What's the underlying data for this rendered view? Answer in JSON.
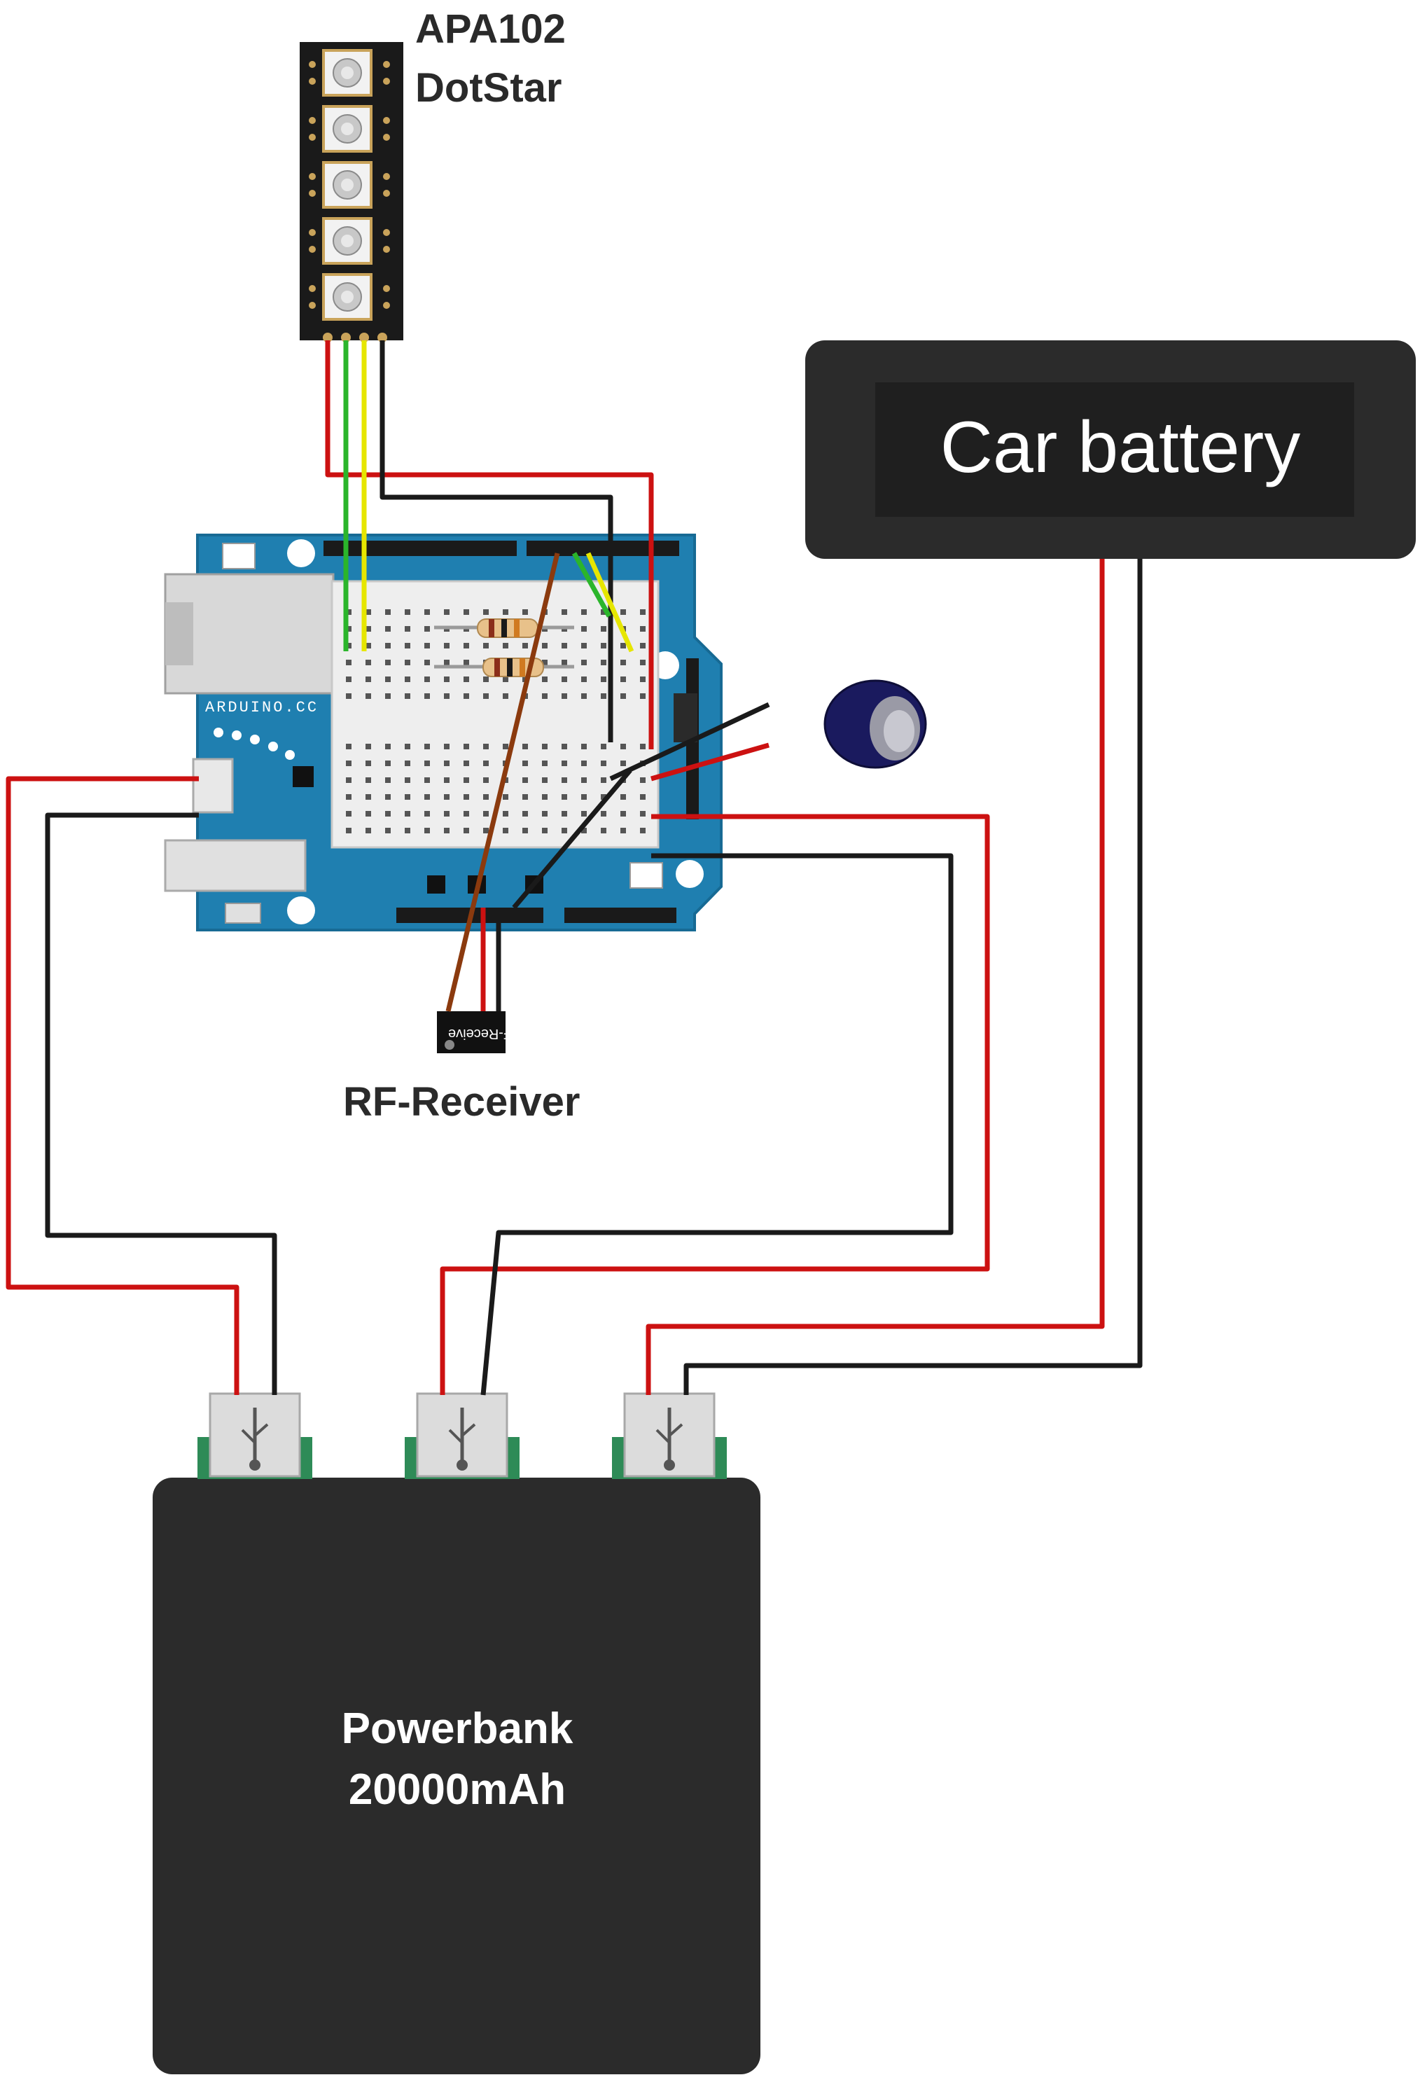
{
  "diagram": {
    "led_strip": {
      "name_line1": "APA102",
      "name_line2": "DotStar"
    },
    "receiver": {
      "name": "RF-Receiver",
      "chip_text": "RF-Receive"
    },
    "board": {
      "silkscreen": "ARDUINO.CC"
    },
    "car_battery": {
      "name": "Car battery"
    },
    "powerbank": {
      "name_line1": "Powerbank",
      "name_line2": "20000mAh"
    },
    "colors": {
      "board": "#1f7fb0",
      "wire_power": "#cc1111",
      "wire_ground": "#1a1a1a",
      "wire_data": "#2bb52b",
      "wire_clock": "#e6e600",
      "wire_signal": "#8b3a0e",
      "case": "#2b2b2b"
    }
  }
}
